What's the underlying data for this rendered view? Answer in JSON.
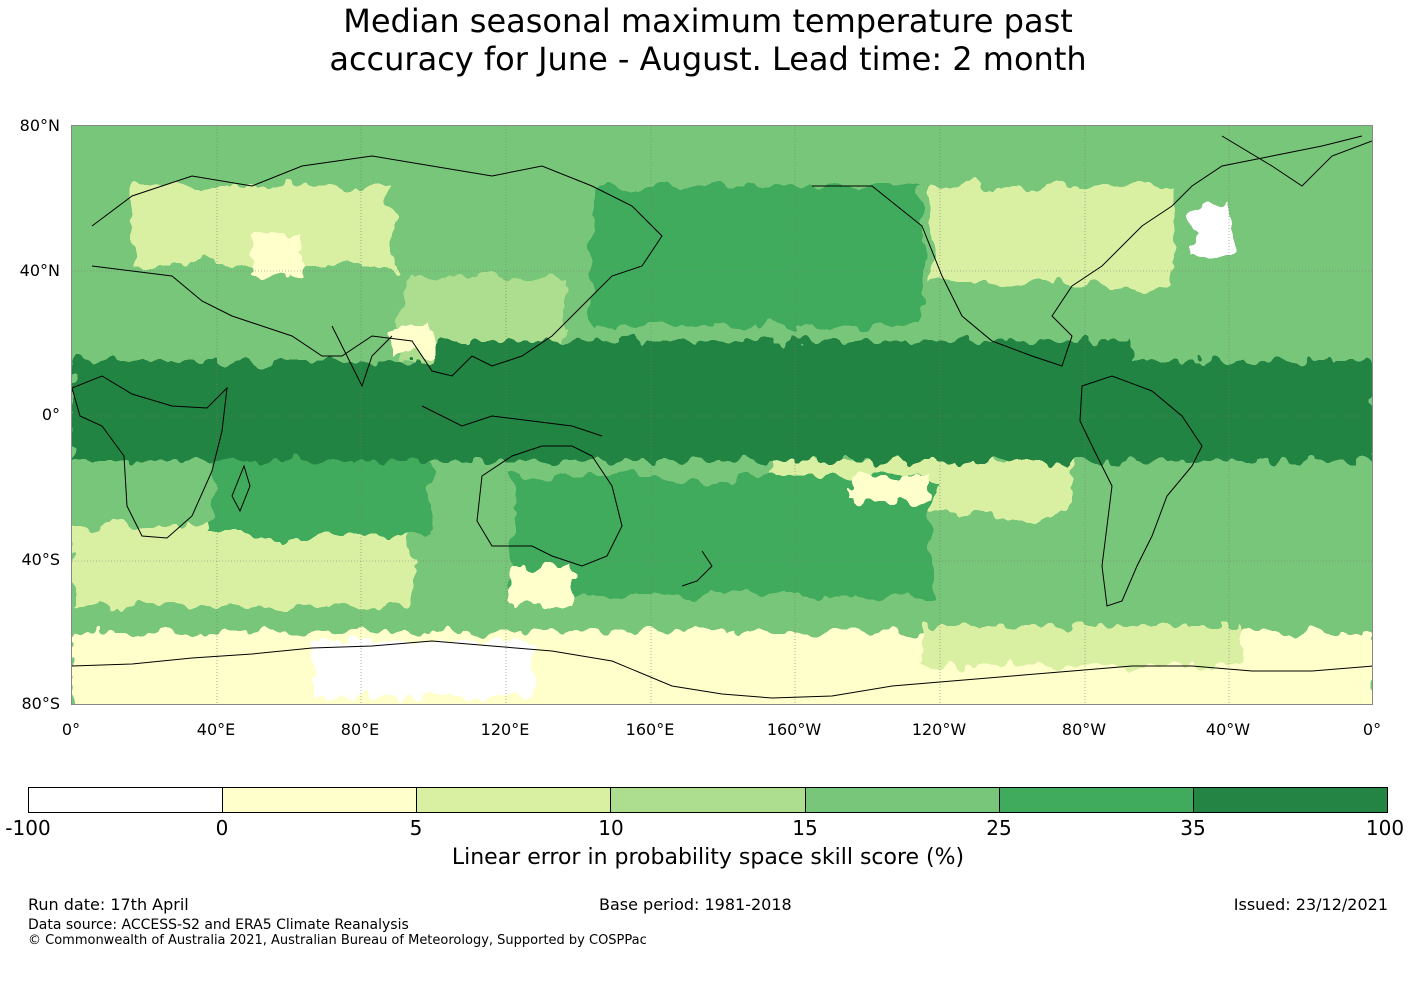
{
  "title": {
    "line1": "Median seasonal maximum temperature past",
    "line2": "accuracy for June - August. Lead time: 2 month"
  },
  "map": {
    "lat_labels": [
      "80°N",
      "40°N",
      "0°",
      "40°S",
      "80°S"
    ],
    "lon_labels": [
      "0°",
      "40°E",
      "80°E",
      "120°E",
      "160°E",
      "160°W",
      "120°W",
      "80°W",
      "40°W",
      "0°"
    ],
    "colors": {
      "ocean_base": "#7cc47c",
      "equatorial_band": "#238b45",
      "mid_band": "#41ab5d",
      "light_band": "#addd8e",
      "pale_band": "#d9f0a3",
      "antarctic": "#ffffcc",
      "coastline": "#000000"
    }
  },
  "colorbar": {
    "label": "Linear error in probability space skill score (%)",
    "ticks": [
      "-100",
      "0",
      "5",
      "10",
      "15",
      "25",
      "35",
      "100"
    ],
    "colors": [
      "#ffffff",
      "#ffffcc",
      "#d9f0a3",
      "#addd8e",
      "#78c679",
      "#41ab5d",
      "#238443"
    ]
  },
  "footer": {
    "run_date": "Run date: 17th April",
    "base_period": "Base period: 1981-2018",
    "issued": "Issued: 23/12/2021",
    "data_source": "Data source: ACCESS-S2 and ERA5 Climate Reanalysis",
    "copyright": "© Commonwealth of Australia 2021, Australian Bureau of Meteorology, Supported by COSPPac"
  }
}
